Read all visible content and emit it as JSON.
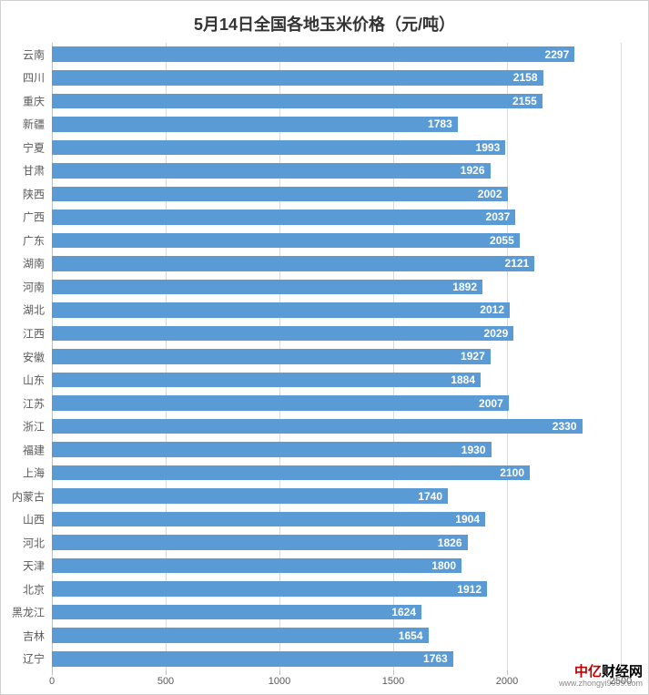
{
  "chart": {
    "type": "bar-horizontal",
    "title": "5月14日全国各地玉米价格（元/吨）",
    "title_fontsize": 18,
    "title_color": "#333333",
    "background_color": "#ffffff",
    "bar_color": "#5b9bd5",
    "bar_label_color": "#ffffff",
    "grid_color": "#d9d9d9",
    "axis_color": "#bfbfbf",
    "tick_label_color": "#595959",
    "label_fontsize": 12,
    "xlim_min": 0,
    "xlim_max": 2500,
    "xtick_step": 500,
    "xticks": [
      0,
      500,
      1000,
      1500,
      2000,
      2500
    ],
    "bar_gap_ratio": 0.35,
    "categories": [
      "云南",
      "四川",
      "重庆",
      "新疆",
      "宁夏",
      "甘肃",
      "陕西",
      "广西",
      "广东",
      "湖南",
      "河南",
      "湖北",
      "江西",
      "安徽",
      "山东",
      "江苏",
      "浙江",
      "福建",
      "上海",
      "内蒙古",
      "山西",
      "河北",
      "天津",
      "北京",
      "黑龙江",
      "吉林",
      "辽宁"
    ],
    "values": [
      2297,
      2158,
      2155,
      1783,
      1993,
      1926,
      2002,
      2037,
      2055,
      2121,
      1892,
      2012,
      2029,
      1927,
      1884,
      2007,
      2330,
      1930,
      2100,
      1740,
      1904,
      1826,
      1800,
      1912,
      1624,
      1654,
      1763
    ]
  },
  "watermark": {
    "brand_part1": "中亿",
    "brand_part2": "财经网",
    "url": "www.zhongyi9999.com"
  }
}
